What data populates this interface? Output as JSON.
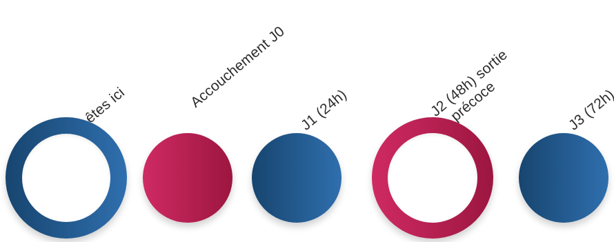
{
  "steps": [
    {
      "id": "vous-etes-ici",
      "label_lines": [
        "Vous êtes ici"
      ],
      "style": "ring",
      "color_start": "#17456f",
      "color_end": "#2f6fae"
    },
    {
      "id": "accouchement-j0",
      "label_lines": [
        "Accouchement J0"
      ],
      "style": "filled",
      "color_start": "#cf2a63",
      "color_end": "#9c1640"
    },
    {
      "id": "j1",
      "label_lines": [
        "J1 (24h)"
      ],
      "style": "filled",
      "color_start": "#17456f",
      "color_end": "#2f6fae"
    },
    {
      "id": "j2",
      "label_lines": [
        "J2 (48h) sortie",
        "précoce"
      ],
      "style": "ring",
      "color_start": "#cf2a63",
      "color_end": "#9c1640"
    },
    {
      "id": "j3",
      "label_lines": [
        "J3 (72h)"
      ],
      "style": "filled",
      "color_start": "#17456f",
      "color_end": "#2f6fae"
    }
  ]
}
